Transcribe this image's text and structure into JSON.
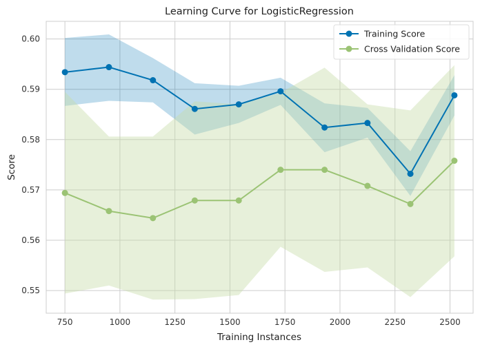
{
  "chart_data": {
    "type": "line",
    "title": "Learning Curve for LogisticRegression",
    "xlabel": "Training Instances",
    "ylabel": "Score",
    "xlim": [
      665,
      2605
    ],
    "ylim": [
      0.5455,
      0.6035
    ],
    "x_ticks": [
      750,
      1000,
      1250,
      1500,
      1750,
      2000,
      2250,
      2500
    ],
    "y_ticks": [
      0.55,
      0.56,
      0.57,
      0.58,
      0.59,
      0.6
    ],
    "y_tick_labels": [
      "0.55",
      "0.56",
      "0.57",
      "0.58",
      "0.59",
      "0.60"
    ],
    "grid": true,
    "legend_position": "top-right",
    "x": [
      750,
      950,
      1150,
      1340,
      1540,
      1730,
      1930,
      2125,
      2320,
      2520
    ],
    "series": [
      {
        "name": "Training Score",
        "color": "#0072B2",
        "band_color": "#0072B2",
        "values": [
          0.5934,
          0.5944,
          0.5918,
          0.5861,
          0.587,
          0.5896,
          0.5824,
          0.5833,
          0.5732,
          0.5888
        ],
        "upper": [
          0.6002,
          0.6009,
          0.5962,
          0.5912,
          0.5907,
          0.5923,
          0.5872,
          0.5863,
          0.5777,
          0.5928
        ],
        "lower": [
          0.5867,
          0.5877,
          0.5874,
          0.581,
          0.5833,
          0.5869,
          0.5775,
          0.5804,
          0.5688,
          0.5848
        ]
      },
      {
        "name": "Cross Validation Score",
        "color": "#9BC374",
        "band_color": "#C5DBA8",
        "values": [
          0.5694,
          0.5658,
          0.5644,
          0.5679,
          0.5679,
          0.574,
          0.574,
          0.5708,
          0.5672,
          0.5758
        ],
        "upper": [
          0.5895,
          0.5806,
          0.5806,
          0.5876,
          0.587,
          0.5893,
          0.5943,
          0.587,
          0.5858,
          0.5948
        ],
        "lower": [
          0.5494,
          0.551,
          0.5482,
          0.5483,
          0.5491,
          0.5587,
          0.5537,
          0.5546,
          0.5487,
          0.5568
        ]
      }
    ]
  }
}
